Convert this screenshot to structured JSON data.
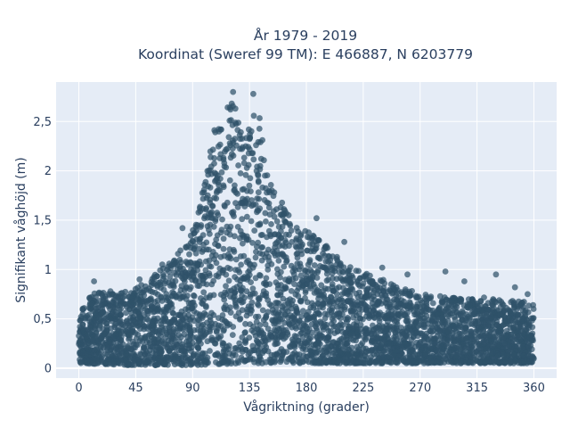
{
  "chart_data": {
    "type": "scatter",
    "title": "År 1979 - 2019",
    "subtitle": "Koordinat (Sweref 99 TM): E 466887, N 6203779",
    "xlabel": "Vågriktning (grader)",
    "ylabel": "Signifikant våghöjd (m)",
    "xlim": [
      -18,
      378
    ],
    "ylim": [
      -0.1,
      2.9
    ],
    "x_ticks": [
      0,
      45,
      90,
      135,
      180,
      225,
      270,
      315,
      360
    ],
    "x_tick_labels": [
      "0",
      "45",
      "90",
      "135",
      "180",
      "225",
      "270",
      "315",
      "360"
    ],
    "y_ticks": [
      0,
      0.5,
      1,
      1.5,
      2,
      2.5
    ],
    "y_tick_labels": [
      "0",
      "0,5",
      "1",
      "1,5",
      "2",
      "2,5"
    ],
    "grid": true,
    "background": "#e5ecf6",
    "marker_color": "#2f5269",
    "upper_envelope": {
      "x": [
        0,
        10,
        20,
        30,
        40,
        50,
        60,
        70,
        80,
        90,
        95,
        100,
        105,
        110,
        115,
        120,
        125,
        130,
        135,
        140,
        145,
        150,
        160,
        170,
        180,
        190,
        200,
        210,
        220,
        230,
        240,
        250,
        260,
        270,
        280,
        290,
        300,
        310,
        320,
        330,
        340,
        350,
        360
      ],
      "y": [
        0.6,
        0.75,
        0.78,
        0.78,
        0.8,
        0.85,
        0.95,
        1.05,
        1.2,
        1.4,
        1.6,
        1.95,
        2.3,
        2.55,
        2.7,
        2.75,
        2.6,
        2.35,
        2.55,
        2.75,
        2.4,
        1.95,
        1.7,
        1.5,
        1.4,
        1.3,
        1.2,
        1.05,
        1.0,
        0.95,
        0.9,
        0.85,
        0.8,
        0.75,
        0.75,
        0.72,
        0.72,
        0.7,
        0.72,
        0.7,
        0.7,
        0.68,
        0.65
      ]
    },
    "lower_envelope": {
      "x": [
        0,
        45,
        90,
        135,
        180,
        225,
        270,
        315,
        360
      ],
      "y": [
        0.05,
        0.03,
        0.03,
        0.05,
        0.05,
        0.05,
        0.05,
        0.05,
        0.05
      ]
    },
    "outliers": [
      {
        "x": 12,
        "y": 0.88
      },
      {
        "x": 25,
        "y": 0.78
      },
      {
        "x": 48,
        "y": 0.9
      },
      {
        "x": 66,
        "y": 1.05
      },
      {
        "x": 82,
        "y": 1.42
      },
      {
        "x": 94,
        "y": 1.45
      },
      {
        "x": 122,
        "y": 2.8
      },
      {
        "x": 138,
        "y": 2.78
      },
      {
        "x": 166,
        "y": 1.55
      },
      {
        "x": 188,
        "y": 1.52
      },
      {
        "x": 210,
        "y": 1.28
      },
      {
        "x": 240,
        "y": 1.02
      },
      {
        "x": 260,
        "y": 0.95
      },
      {
        "x": 290,
        "y": 0.98
      },
      {
        "x": 305,
        "y": 0.88
      },
      {
        "x": 330,
        "y": 0.95
      },
      {
        "x": 345,
        "y": 0.82
      },
      {
        "x": 355,
        "y": 0.75
      }
    ]
  }
}
